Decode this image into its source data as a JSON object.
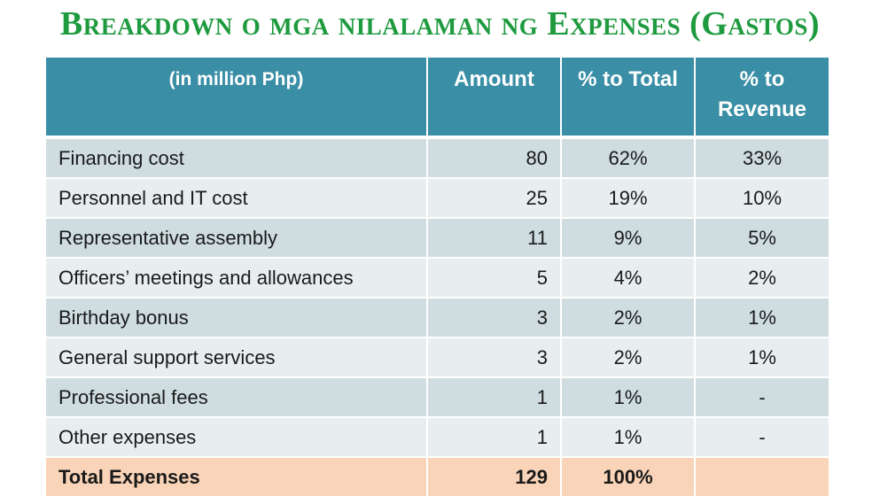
{
  "title": "Breakdown o mga nilalaman ng Expenses (Gastos)",
  "table": {
    "headers": {
      "label": "(in million Php)",
      "amount": "Amount",
      "pct_total": "% to Total",
      "pct_revenue": "% to Revenue"
    },
    "rows": [
      {
        "label": "Financing cost",
        "amount": "80",
        "pct_total": "62%",
        "pct_revenue": "33%"
      },
      {
        "label": "Personnel and IT cost",
        "amount": "25",
        "pct_total": "19%",
        "pct_revenue": "10%"
      },
      {
        "label": "Representative assembly",
        "amount": "11",
        "pct_total": "9%",
        "pct_revenue": "5%"
      },
      {
        "label": "Officers’ meetings and allowances",
        "amount": "5",
        "pct_total": "4%",
        "pct_revenue": "2%"
      },
      {
        "label": "Birthday bonus",
        "amount": "3",
        "pct_total": "2%",
        "pct_revenue": "1%"
      },
      {
        "label": "General support services",
        "amount": "3",
        "pct_total": "2%",
        "pct_revenue": "1%"
      },
      {
        "label": "Professional fees",
        "amount": "1",
        "pct_total": "1%",
        "pct_revenue": "-"
      },
      {
        "label": "Other expenses",
        "amount": "1",
        "pct_total": "1%",
        "pct_revenue": "-"
      }
    ],
    "total": {
      "label": "Total Expenses",
      "amount": "129",
      "pct_total": "100%",
      "pct_revenue": ""
    }
  },
  "colors": {
    "title": "#1e9a3f",
    "header_bg": "#3a8ea6",
    "row_dark": "#cfdde1",
    "row_light": "#e8eef0",
    "total_bg": "#fad4b8"
  }
}
